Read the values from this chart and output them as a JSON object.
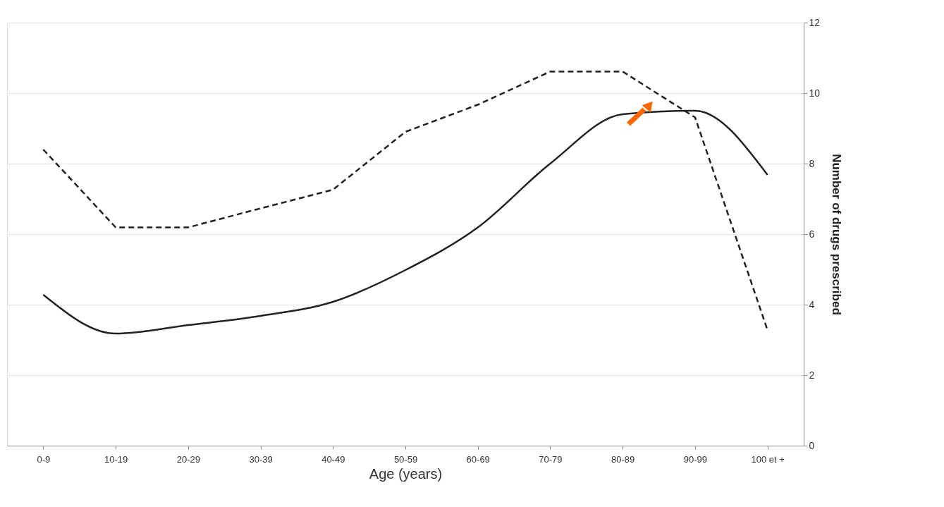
{
  "chart_data": {
    "type": "line",
    "xlabel": "Age (years)",
    "ylabel": "Number of drugs prescribed",
    "categories": [
      "0-9",
      "10-19",
      "20-29",
      "30-39",
      "40-49",
      "50-59",
      "60-69",
      "70-79",
      "80-89",
      "90-99",
      "100 et +"
    ],
    "series": [
      {
        "color": "#222222",
        "line_style": "solid",
        "values": [
          4.28,
          3.18,
          3.42,
          3.68,
          4.08,
          4.98,
          6.19,
          8.0,
          9.4,
          9.5,
          7.68
        ]
      },
      {
        "color": "#222222",
        "line_style": "dashed",
        "values": [
          8.4,
          6.19,
          6.19,
          6.73,
          7.26,
          8.9,
          9.67,
          10.61,
          10.61,
          9.31,
          3.28
        ]
      }
    ],
    "ylim": [
      0,
      12
    ],
    "yticks": [
      0,
      2,
      4,
      6,
      8,
      10,
      12
    ],
    "grid": "y",
    "marker": "none"
  }
}
